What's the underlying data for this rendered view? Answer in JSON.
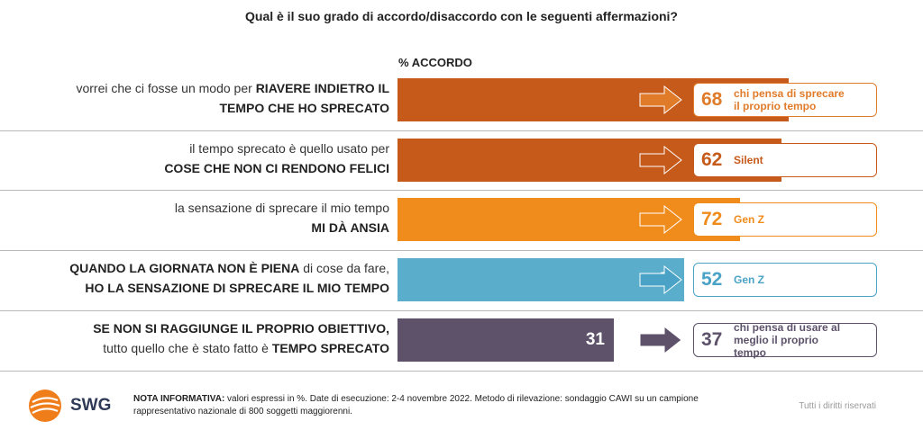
{
  "title": "Qual è il suo grado di accordo/disaccordo con le seguenti affermazioni?",
  "column_header": "% ACCORDO",
  "rows": [
    {
      "line1": [
        {
          "t": "vorrei che ci fosse un modo per ",
          "b": false
        },
        {
          "t": "RIAVERE INDIETRO IL",
          "b": true
        }
      ],
      "line2": [
        {
          "t": "TEMPO CHE HO SPRECATO",
          "b": true
        }
      ],
      "value": 56,
      "color": "#c55a1b",
      "box_value": "68",
      "box_text": "chi pensa di sprecare il proprio tempo",
      "box_color": "#e07b2a"
    },
    {
      "line1": [
        {
          "t": "il tempo sprecato è quello usato per",
          "b": false
        }
      ],
      "line2": [
        {
          "t": "COSE CHE NON CI RENDONO FELICI",
          "b": true
        }
      ],
      "value": 55,
      "color": "#c55a1b",
      "box_value": "62",
      "box_text": "Silent",
      "box_color": "#c55a1b"
    },
    {
      "line1": [
        {
          "t": "la sensazione di sprecare il mio tempo",
          "b": false
        }
      ],
      "line2": [
        {
          "t": "MI DÀ ANSIA",
          "b": true
        }
      ],
      "value": 49,
      "color": "#f08c1c",
      "box_value": "72",
      "box_text": "Gen Z",
      "box_color": "#f08c1c"
    },
    {
      "line1": [
        {
          "t": "QUANDO LA GIORNATA NON È PIENA",
          "b": true
        },
        {
          "t": " di cose da fare,",
          "b": false
        }
      ],
      "line2": [
        {
          "t": "HO LA SENSAZIONE DI SPRECARE IL MIO TEMPO",
          "b": true
        }
      ],
      "value": 41,
      "color": "#5aaecb",
      "box_value": "52",
      "box_text": "Gen Z",
      "box_color": "#4aa3c6"
    },
    {
      "line1": [
        {
          "t": "SE NON SI RAGGIUNGE IL PROPRIO OBIETTIVO,",
          "b": true
        }
      ],
      "line2": [
        {
          "t": "tutto quello che è stato fatto è ",
          "b": false
        },
        {
          "t": "TEMPO SPRECATO",
          "b": true
        }
      ],
      "value": 31,
      "color": "#5d526a",
      "box_value": "37",
      "box_text": "chi pensa di usare al meglio il proprio tempo",
      "box_color": "#5d526a"
    }
  ],
  "chart_data": {
    "type": "bar",
    "orientation": "horizontal",
    "title": "Qual è il suo grado di accordo/disaccordo con le seguenti affermazioni?",
    "ylabel": "% ACCORDO",
    "categories": [
      "vorrei che ci fosse un modo per RIAVERE INDIETRO IL TEMPO CHE HO SPRECATO",
      "il tempo sprecato è quello usato per COSE CHE NON CI RENDONO FELICI",
      "la sensazione di sprecare il mio tempo MI DÀ ANSIA",
      "QUANDO LA GIORNATA NON È PIENA di cose da fare, HO LA SENSAZIONE DI SPRECARE IL MIO TEMPO",
      "SE NON SI RAGGIUNGE IL PROPRIO OBIETTIVO, tutto quello che è stato fatto è TEMPO SPRECATO"
    ],
    "values": [
      56,
      55,
      49,
      41,
      31
    ],
    "callouts": [
      {
        "value": 68,
        "label": "chi pensa di sprecare il proprio tempo"
      },
      {
        "value": 62,
        "label": "Silent"
      },
      {
        "value": 72,
        "label": "Gen Z"
      },
      {
        "value": 52,
        "label": "Gen Z"
      },
      {
        "value": 37,
        "label": "chi pensa di usare al meglio il proprio tempo"
      }
    ],
    "xlim": [
      0,
      100
    ]
  },
  "footer": {
    "logo_text": "SWG",
    "note_bold": "NOTA INFORMATIVA:",
    "note_text": " valori espressi in %. Date di esecuzione: 2-4 novembre 2022. Metodo di rilevazione: sondaggio CAWI su un campione rappresentativo nazionale di 800 soggetti maggiorenni.",
    "rights": "Tutti i diritti riservati"
  }
}
